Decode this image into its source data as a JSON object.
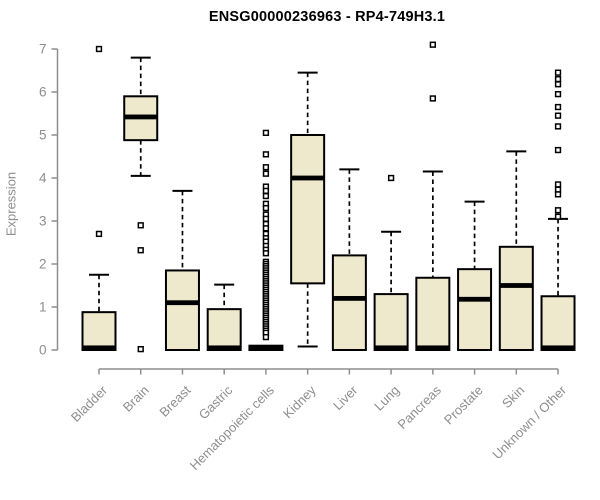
{
  "chart_data": {
    "type": "boxplot",
    "title": "ENSG00000236963 - RP4-749H3.1",
    "ylabel": "Expression",
    "xlabel": "",
    "ylim": [
      0,
      7
    ],
    "yticks": [
      0,
      1,
      2,
      3,
      4,
      5,
      6,
      7
    ],
    "grid": false,
    "legend": "none",
    "categories": [
      "Bladder",
      "Brain",
      "Breast",
      "Gastric",
      "Hematopoietic cells",
      "Kidney",
      "Liver",
      "Lung",
      "Pancreas",
      "Prostate",
      "Skin",
      "Unknown / Other"
    ],
    "series": [
      {
        "name": "Bladder",
        "low": 0,
        "q1": 0,
        "median": 0.05,
        "q3": 0.88,
        "high": 1.75,
        "outliers": [
          7.0,
          2.7
        ]
      },
      {
        "name": "Brain",
        "low": 4.05,
        "q1": 4.88,
        "median": 5.42,
        "q3": 5.9,
        "high": 6.8,
        "outliers": [
          2.9,
          2.32,
          0.02
        ]
      },
      {
        "name": "Breast",
        "low": 0,
        "q1": 0,
        "median": 1.1,
        "q3": 1.85,
        "high": 3.7,
        "outliers": []
      },
      {
        "name": "Gastric",
        "low": 0,
        "q1": 0,
        "median": 0.05,
        "q3": 0.95,
        "high": 1.52,
        "outliers": []
      },
      {
        "name": "Hematopoietic cells",
        "low": 0,
        "q1": 0,
        "median": 0.05,
        "q3": 0.1,
        "high": 0.1,
        "outliers": [
          5.05,
          4.55,
          4.25,
          4.1,
          3.8,
          3.7,
          3.58,
          3.4,
          3.3,
          3.15,
          3.05,
          2.93,
          2.83,
          2.7,
          2.6,
          2.52,
          2.42,
          2.33,
          2.25,
          2.05,
          2.0,
          1.95,
          1.9,
          1.85,
          1.8,
          1.75,
          1.7,
          1.65,
          1.6,
          1.55,
          1.5,
          1.45,
          1.4,
          1.35,
          1.3,
          1.25,
          1.2,
          1.15,
          1.1,
          1.05,
          1.0,
          0.95,
          0.9,
          0.85,
          0.8,
          0.75,
          0.7,
          0.65,
          0.6,
          0.55,
          0.5,
          0.45,
          0.4,
          0.3
        ]
      },
      {
        "name": "Kidney",
        "low": 0.08,
        "q1": 1.55,
        "median": 4.0,
        "q3": 5.0,
        "high": 6.45,
        "outliers": []
      },
      {
        "name": "Liver",
        "low": 0,
        "q1": 0,
        "median": 1.2,
        "q3": 2.2,
        "high": 4.2,
        "outliers": []
      },
      {
        "name": "Lung",
        "low": 0,
        "q1": 0,
        "median": 0.05,
        "q3": 1.3,
        "high": 2.75,
        "outliers": [
          4.0
        ]
      },
      {
        "name": "Pancreas",
        "low": 0,
        "q1": 0,
        "median": 0.05,
        "q3": 1.68,
        "high": 4.15,
        "outliers": [
          7.1,
          5.85
        ]
      },
      {
        "name": "Prostate",
        "low": 0,
        "q1": 0,
        "median": 1.18,
        "q3": 1.88,
        "high": 3.45,
        "outliers": []
      },
      {
        "name": "Skin",
        "low": 0,
        "q1": 0,
        "median": 1.5,
        "q3": 2.4,
        "high": 4.62,
        "outliers": []
      },
      {
        "name": "Unknown / Other",
        "low": 0,
        "q1": 0,
        "median": 0.05,
        "q3": 1.25,
        "high": 3.05,
        "outliers": [
          6.45,
          6.3,
          6.18,
          5.95,
          5.65,
          5.45,
          5.2,
          4.65,
          3.85,
          3.73,
          3.62,
          3.25,
          3.1
        ]
      }
    ],
    "colors": {
      "box_fill": "#EEE8CD",
      "box_border": "#000000",
      "median": "#000000",
      "whisker": "#000000",
      "outlier_fill": "#FFFFFF",
      "axis": "#8E8E8E",
      "tick_label": "#8E8E8E",
      "title": "#000000",
      "background": "#FFFFFF"
    }
  }
}
